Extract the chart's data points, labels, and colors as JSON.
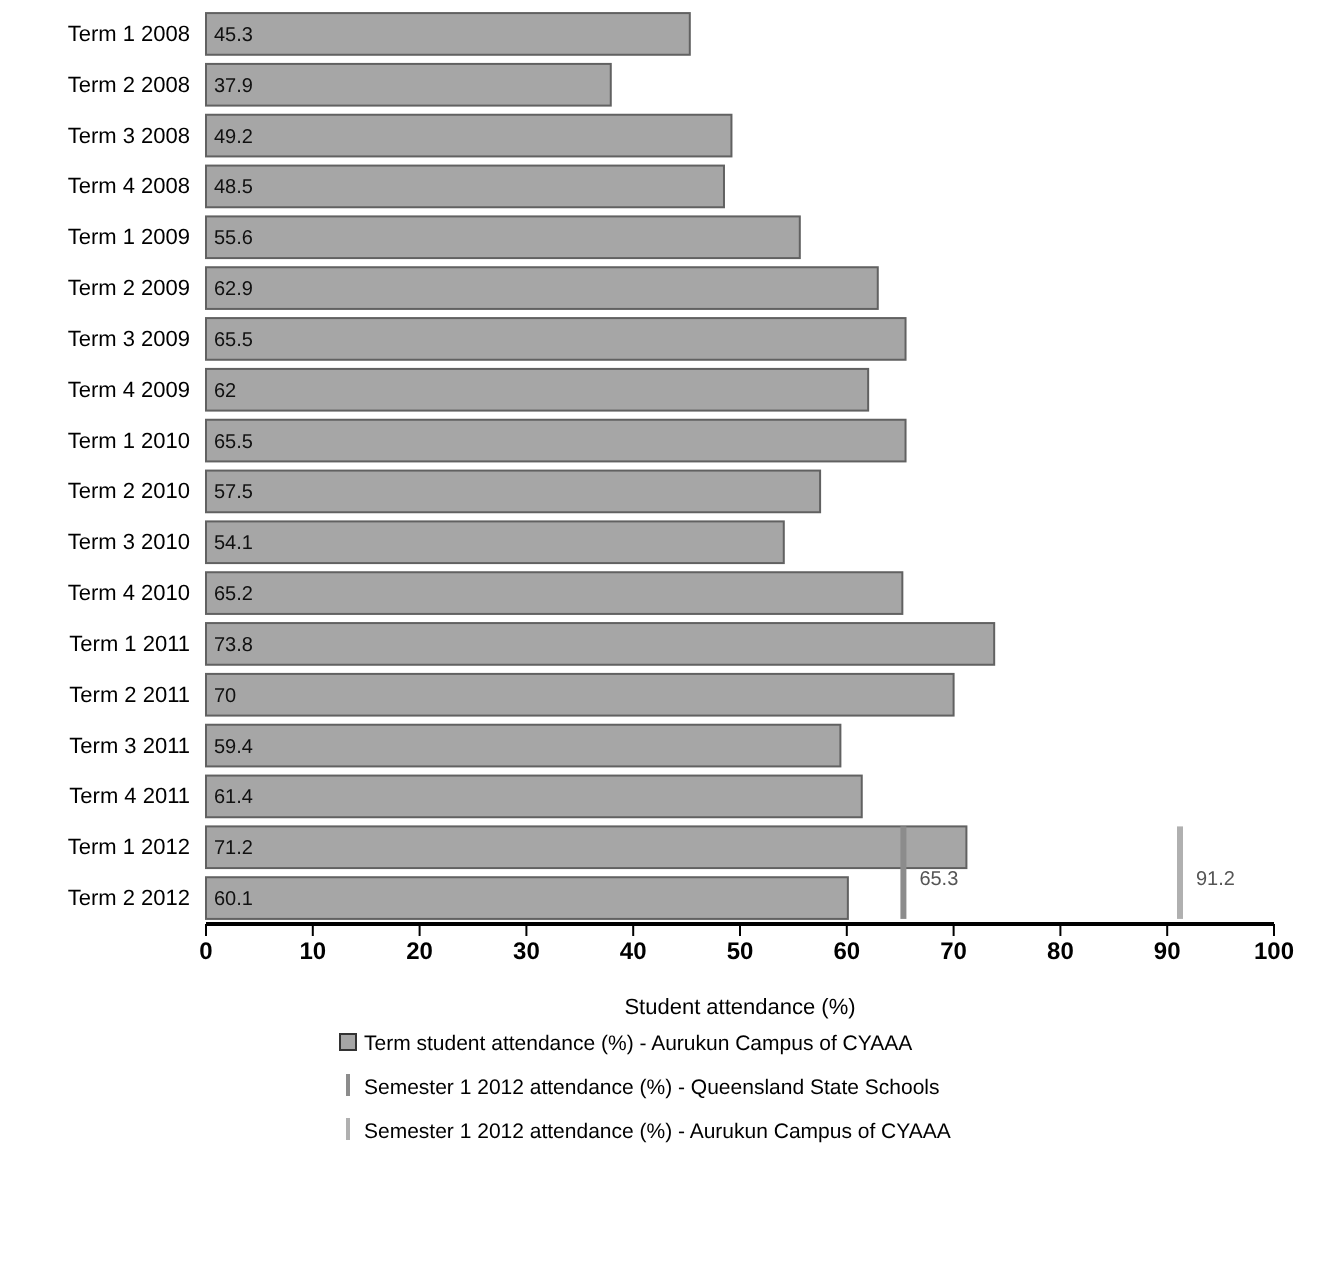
{
  "chart_data": {
    "type": "bar",
    "orientation": "horizontal",
    "xlabel": "Student attendance (%)",
    "categories": [
      "Term 1 2008",
      "Term 2 2008",
      "Term 3 2008",
      "Term 4 2008",
      "Term 1 2009",
      "Term 2 2009",
      "Term 3 2009",
      "Term 4 2009",
      "Term 1 2010",
      "Term 2 2010",
      "Term 3 2010",
      "Term 4 2010",
      "Term 1 2011",
      "Term 2 2011",
      "Term 3 2011",
      "Term 4 2011",
      "Term 1 2012",
      "Term 2 2012"
    ],
    "series": [
      {
        "name": "Term student attendance (%) - Aurukun Campus of CYAAA",
        "color": "#a6a6a6",
        "values": [
          45.3,
          37.9,
          49.2,
          48.5,
          55.6,
          62.9,
          65.5,
          62.0,
          65.5,
          57.5,
          54.1,
          65.2,
          73.8,
          70.0,
          59.4,
          61.4,
          71.2,
          60.1
        ]
      }
    ],
    "data_labels": true,
    "xlim": [
      0,
      100
    ],
    "xticks": [
      0,
      10,
      20,
      30,
      40,
      50,
      60,
      70,
      80,
      90,
      100
    ],
    "ref_lines": [
      {
        "axis": "x",
        "value": 65.3,
        "label": "65.3",
        "color": "#8c8c8c"
      },
      {
        "axis": "x",
        "value": 91.2,
        "label": "91.2",
        "color": "#b0b0b0"
      }
    ],
    "annotations": [
      "Semester 1 2012 attendance (%) - Queensland State Schools",
      "Semester 1 2012 attendance (%) - Aurukun Campus of CYAAA"
    ],
    "legend": "bottom"
  }
}
